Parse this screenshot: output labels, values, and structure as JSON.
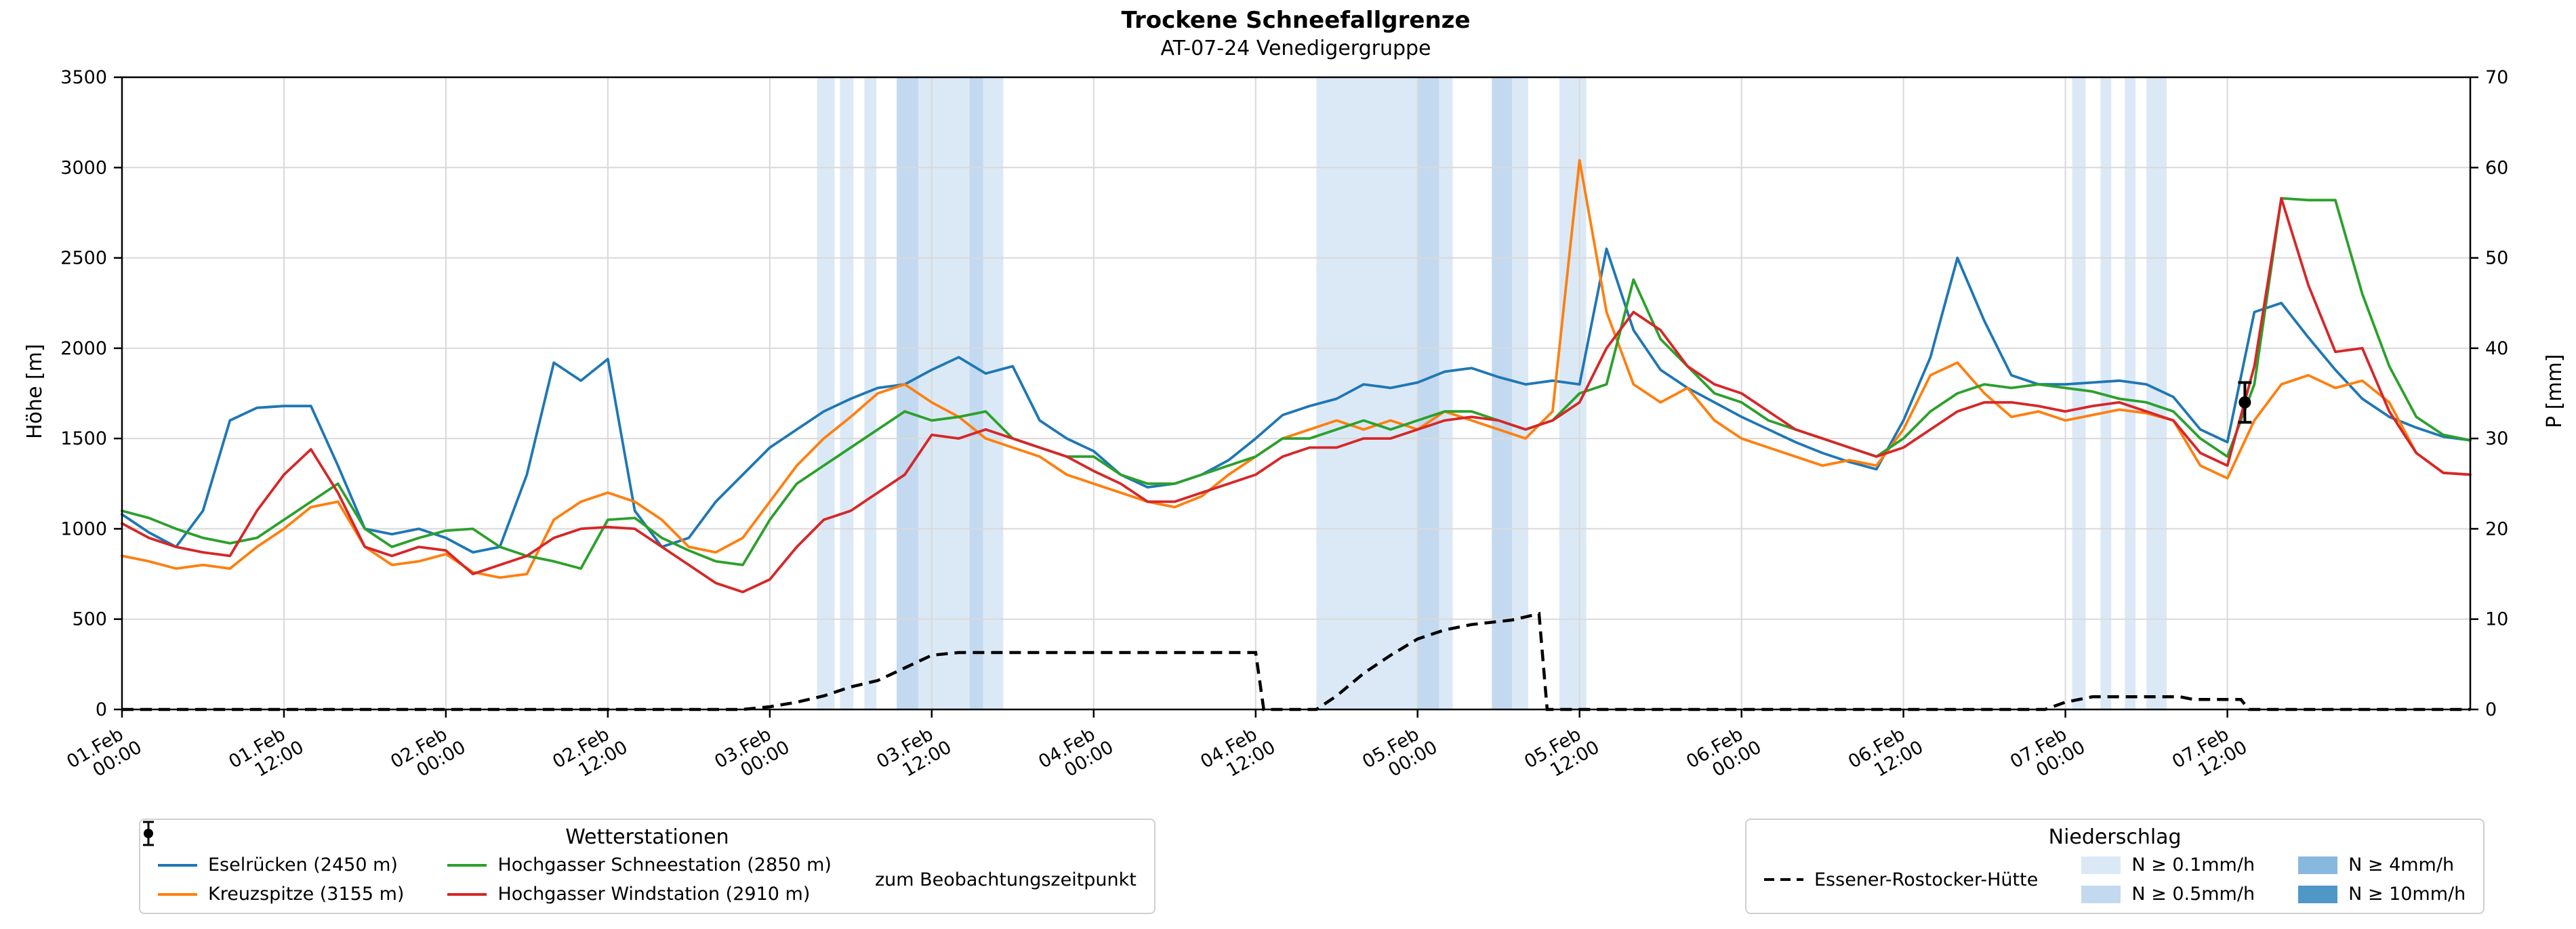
{
  "legend_stations": {
    "title": "Wetterstationen",
    "marker_label": "zum Beobachtungszeitpunkt"
  },
  "legend_precip": {
    "title": "Niederschlag",
    "levels": [
      {
        "label": "N ≥ 0.1mm/h",
        "color": "#dbe9f6"
      },
      {
        "label": "N ≥ 0.5mm/h",
        "color": "#c3d9ef"
      },
      {
        "label": "N ≥ 4mm/h",
        "color": "#89b8de"
      },
      {
        "label": "N ≥ 10mm/h",
        "color": "#4f97c7"
      }
    ]
  },
  "chart_data": {
    "type": "line",
    "title": "Trockene Schneefallgrenze",
    "subtitle": "AT-07-24 Venedigergruppe",
    "ylabel_left": "Höhe [m]",
    "ylabel_right": "P [mm]",
    "xlim_hours": [
      0,
      174
    ],
    "ylim_left": [
      0,
      3500
    ],
    "ylim_right": [
      0,
      70
    ],
    "y_left_ticks": [
      0,
      500,
      1000,
      1500,
      2000,
      2500,
      3000,
      3500
    ],
    "y_right_ticks": [
      0,
      10,
      20,
      30,
      40,
      50,
      60,
      70
    ],
    "x_ticks": [
      {
        "t": 0,
        "date": "01.Feb",
        "time": "00:00"
      },
      {
        "t": 12,
        "date": "01.Feb",
        "time": "12:00"
      },
      {
        "t": 24,
        "date": "02.Feb",
        "time": "00:00"
      },
      {
        "t": 36,
        "date": "02.Feb",
        "time": "12:00"
      },
      {
        "t": 48,
        "date": "03.Feb",
        "time": "00:00"
      },
      {
        "t": 60,
        "date": "03.Feb",
        "time": "12:00"
      },
      {
        "t": 72,
        "date": "04.Feb",
        "time": "00:00"
      },
      {
        "t": 84,
        "date": "04.Feb",
        "time": "12:00"
      },
      {
        "t": 96,
        "date": "05.Feb",
        "time": "00:00"
      },
      {
        "t": 108,
        "date": "05.Feb",
        "time": "12:00"
      },
      {
        "t": 120,
        "date": "06.Feb",
        "time": "00:00"
      },
      {
        "t": 132,
        "date": "06.Feb",
        "time": "12:00"
      },
      {
        "t": 144,
        "date": "07.Feb",
        "time": "00:00"
      },
      {
        "t": 156,
        "date": "07.Feb",
        "time": "12:00"
      }
    ],
    "x_hours": [
      0,
      2,
      4,
      6,
      8,
      10,
      12,
      14,
      16,
      18,
      20,
      22,
      24,
      26,
      28,
      30,
      32,
      34,
      36,
      38,
      40,
      42,
      44,
      46,
      48,
      50,
      52,
      54,
      56,
      58,
      60,
      62,
      64,
      66,
      68,
      70,
      72,
      74,
      76,
      78,
      80,
      82,
      84,
      86,
      88,
      90,
      92,
      94,
      96,
      98,
      100,
      102,
      104,
      106,
      108,
      110,
      112,
      114,
      116,
      118,
      120,
      122,
      124,
      126,
      128,
      130,
      132,
      134,
      136,
      138,
      140,
      142,
      144,
      146,
      148,
      150,
      152,
      154,
      156,
      158,
      160,
      162,
      164,
      166,
      168,
      170,
      172,
      174
    ],
    "series": [
      {
        "name": "Eselrücken (2450 m)",
        "color": "#1f77b4",
        "values": [
          1080,
          980,
          900,
          1100,
          1600,
          1670,
          1680,
          1680,
          1350,
          1000,
          970,
          1000,
          950,
          870,
          900,
          1300,
          1920,
          1820,
          1940,
          1100,
          900,
          950,
          1150,
          1300,
          1450,
          1550,
          1650,
          1720,
          1780,
          1800,
          1880,
          1950,
          1860,
          1900,
          1600,
          1500,
          1430,
          1300,
          1230,
          1250,
          1300,
          1380,
          1500,
          1630,
          1680,
          1720,
          1800,
          1780,
          1810,
          1870,
          1890,
          1840,
          1800,
          1820,
          1800,
          2550,
          2100,
          1880,
          1780,
          1700,
          1620,
          1550,
          1480,
          1420,
          1370,
          1330,
          1600,
          1950,
          2500,
          2150,
          1850,
          1800,
          1800,
          1810,
          1820,
          1800,
          1730,
          1550,
          1480,
          2200,
          2250,
          2060,
          1880,
          1720,
          1620,
          1560,
          1510,
          1490
        ]
      },
      {
        "name": "Kreuzspitze (3155 m)",
        "color": "#ff7f0e",
        "values": [
          850,
          820,
          780,
          800,
          780,
          900,
          1000,
          1120,
          1150,
          900,
          800,
          820,
          860,
          760,
          730,
          750,
          1050,
          1150,
          1200,
          1150,
          1050,
          900,
          870,
          950,
          1150,
          1350,
          1500,
          1620,
          1750,
          1800,
          1700,
          1620,
          1500,
          1450,
          1400,
          1300,
          1250,
          1200,
          1150,
          1120,
          1180,
          1300,
          1400,
          1500,
          1550,
          1600,
          1550,
          1600,
          1550,
          1650,
          1600,
          1550,
          1500,
          1650,
          3040,
          2200,
          1800,
          1700,
          1780,
          1600,
          1500,
          1450,
          1400,
          1350,
          1380,
          1350,
          1550,
          1850,
          1920,
          1750,
          1620,
          1650,
          1600,
          1630,
          1660,
          1640,
          1600,
          1350,
          1280,
          1600,
          1800,
          1850,
          1780,
          1820,
          1700,
          1420,
          1310,
          1300
        ]
      },
      {
        "name": "Hochgasser Schneestation (2850 m)",
        "color": "#2ca02c",
        "values": [
          1100,
          1060,
          1000,
          950,
          920,
          950,
          1050,
          1150,
          1250,
          1000,
          900,
          950,
          990,
          1000,
          900,
          850,
          820,
          780,
          1050,
          1060,
          950,
          880,
          820,
          800,
          1050,
          1250,
          1350,
          1450,
          1550,
          1650,
          1600,
          1620,
          1650,
          1500,
          1450,
          1400,
          1400,
          1300,
          1250,
          1250,
          1300,
          1350,
          1400,
          1500,
          1500,
          1550,
          1600,
          1550,
          1600,
          1650,
          1650,
          1600,
          1550,
          1600,
          1750,
          1800,
          2380,
          2050,
          1900,
          1750,
          1700,
          1600,
          1550,
          1500,
          1450,
          1400,
          1500,
          1650,
          1750,
          1800,
          1780,
          1800,
          1780,
          1760,
          1720,
          1700,
          1650,
          1500,
          1400,
          1800,
          2830,
          2820,
          2820,
          2300,
          1900,
          1620,
          1520,
          1490
        ]
      },
      {
        "name": "Hochgasser Windstation (2910 m)",
        "color": "#d62728",
        "values": [
          1030,
          950,
          900,
          870,
          850,
          1100,
          1300,
          1440,
          1200,
          900,
          850,
          900,
          880,
          750,
          800,
          850,
          950,
          1000,
          1010,
          1000,
          900,
          800,
          700,
          650,
          720,
          900,
          1050,
          1100,
          1200,
          1300,
          1520,
          1500,
          1550,
          1500,
          1450,
          1400,
          1320,
          1250,
          1150,
          1150,
          1200,
          1250,
          1300,
          1400,
          1450,
          1450,
          1500,
          1500,
          1550,
          1600,
          1620,
          1600,
          1550,
          1600,
          1700,
          2000,
          2200,
          2100,
          1900,
          1800,
          1750,
          1650,
          1550,
          1500,
          1450,
          1400,
          1450,
          1550,
          1650,
          1700,
          1700,
          1680,
          1650,
          1680,
          1700,
          1650,
          1600,
          1420,
          1350,
          1900,
          2830,
          2350,
          1980,
          2000,
          1650,
          1420,
          1310,
          1300
        ]
      }
    ],
    "precip_line": {
      "name": "Essener-Rostocker-Hütte",
      "color": "#000000",
      "style": "dashed",
      "axis": "right",
      "points": [
        [
          0,
          0
        ],
        [
          46,
          0
        ],
        [
          48,
          0.3
        ],
        [
          50,
          0.8
        ],
        [
          52,
          1.5
        ],
        [
          54,
          2.5
        ],
        [
          56,
          3.2
        ],
        [
          58,
          4.6
        ],
        [
          60,
          6.0
        ],
        [
          62,
          6.3
        ],
        [
          84,
          6.3
        ],
        [
          84.6,
          0
        ],
        [
          88.5,
          0
        ],
        [
          90,
          1.5
        ],
        [
          92,
          4.0
        ],
        [
          94,
          6.0
        ],
        [
          96,
          7.8
        ],
        [
          98,
          8.8
        ],
        [
          100,
          9.4
        ],
        [
          103,
          9.9
        ],
        [
          105,
          10.6
        ],
        [
          105.6,
          0
        ],
        [
          142.5,
          0
        ],
        [
          144,
          0.8
        ],
        [
          146,
          1.4
        ],
        [
          152.5,
          1.4
        ],
        [
          153.5,
          1.1
        ],
        [
          157,
          1.1
        ],
        [
          157.6,
          0
        ],
        [
          174,
          0
        ]
      ]
    },
    "precip_bands": [
      {
        "from_h": 51.5,
        "to_h": 52.8,
        "level": "0.1"
      },
      {
        "from_h": 53.2,
        "to_h": 54.2,
        "level": "0.1"
      },
      {
        "from_h": 55.0,
        "to_h": 55.9,
        "level": "0.1"
      },
      {
        "from_h": 57.4,
        "to_h": 59.0,
        "level": "0.5"
      },
      {
        "from_h": 59.0,
        "to_h": 62.8,
        "level": "0.1"
      },
      {
        "from_h": 62.8,
        "to_h": 63.8,
        "level": "0.5"
      },
      {
        "from_h": 63.8,
        "to_h": 65.3,
        "level": "0.1"
      },
      {
        "from_h": 88.5,
        "to_h": 96.0,
        "level": "0.1"
      },
      {
        "from_h": 96.0,
        "to_h": 97.6,
        "level": "0.5"
      },
      {
        "from_h": 97.6,
        "to_h": 98.6,
        "level": "0.1"
      },
      {
        "from_h": 101.5,
        "to_h": 103.0,
        "level": "0.5"
      },
      {
        "from_h": 103.0,
        "to_h": 104.2,
        "level": "0.1"
      },
      {
        "from_h": 106.5,
        "to_h": 108.5,
        "level": "0.1"
      },
      {
        "from_h": 144.5,
        "to_h": 145.5,
        "level": "0.1"
      },
      {
        "from_h": 146.6,
        "to_h": 147.4,
        "level": "0.1"
      },
      {
        "from_h": 148.4,
        "to_h": 149.2,
        "level": "0.1"
      },
      {
        "from_h": 150.0,
        "to_h": 151.5,
        "level": "0.1"
      }
    ],
    "band_colors": {
      "0.1": "#dbe9f6",
      "0.5": "#c3d9ef",
      "4": "#89b8de",
      "10": "#4f97c7"
    },
    "observation_marker": {
      "t": 157.3,
      "value": 1700,
      "err_plus": 110,
      "err_minus": 110,
      "label": "zum Beobachtungszeitpunkt"
    }
  }
}
